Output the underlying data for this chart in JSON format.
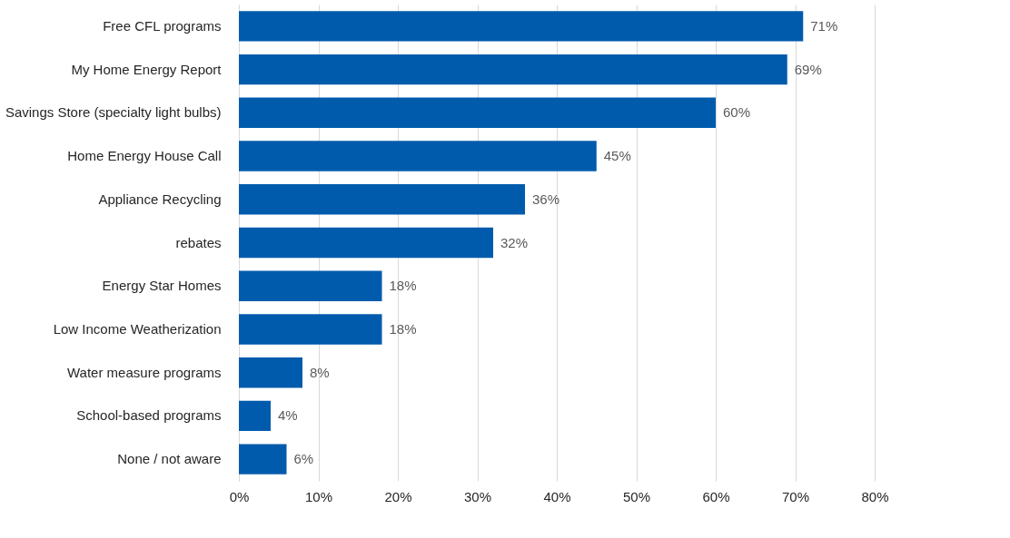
{
  "chart_data": {
    "type": "bar",
    "orientation": "horizontal",
    "categories": [
      "Free CFL programs",
      "My Home Energy Report",
      "Savings Store (specialty light bulbs)",
      "Home Energy House Call",
      "Appliance Recycling",
      "rebates",
      "Energy Star Homes",
      "Low Income Weatherization",
      "Water measure programs",
      "School-based programs",
      "None / not aware"
    ],
    "values": [
      71,
      69,
      60,
      45,
      36,
      32,
      18,
      18,
      8,
      4,
      6
    ],
    "value_labels": [
      "71%",
      "69%",
      "60%",
      "45%",
      "36%",
      "32%",
      "18%",
      "18%",
      "8%",
      "4%",
      "6%"
    ],
    "color": "#005bac",
    "xlim": [
      0,
      80
    ],
    "xticks": [
      {
        "value": 0,
        "label": "0%"
      },
      {
        "value": 10,
        "label": "10%"
      },
      {
        "value": 20,
        "label": "20%"
      },
      {
        "value": 30,
        "label": "30%"
      },
      {
        "value": 40,
        "label": "40%"
      },
      {
        "value": 50,
        "label": "50%"
      },
      {
        "value": 60,
        "label": "60%"
      },
      {
        "value": 70,
        "label": "70%"
      },
      {
        "value": 80,
        "label": "80%"
      }
    ],
    "grid": "x"
  }
}
